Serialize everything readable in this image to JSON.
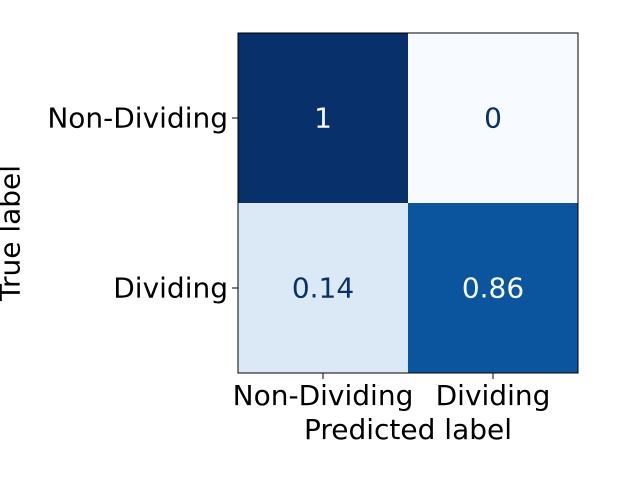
{
  "chart_data": {
    "type": "heatmap",
    "title": "",
    "xlabel": "Predicted label",
    "ylabel": "True label",
    "x_categories": [
      "Non-Dividing",
      "Dividing"
    ],
    "y_categories": [
      "Non-Dividing",
      "Dividing"
    ],
    "values": [
      [
        1,
        0
      ],
      [
        0.14,
        0.86
      ]
    ],
    "value_labels": [
      [
        "1",
        "0"
      ],
      [
        "0.14",
        "0.86"
      ]
    ],
    "colormap": "Blues",
    "vmin": 0,
    "vmax": 1,
    "grid": false
  }
}
